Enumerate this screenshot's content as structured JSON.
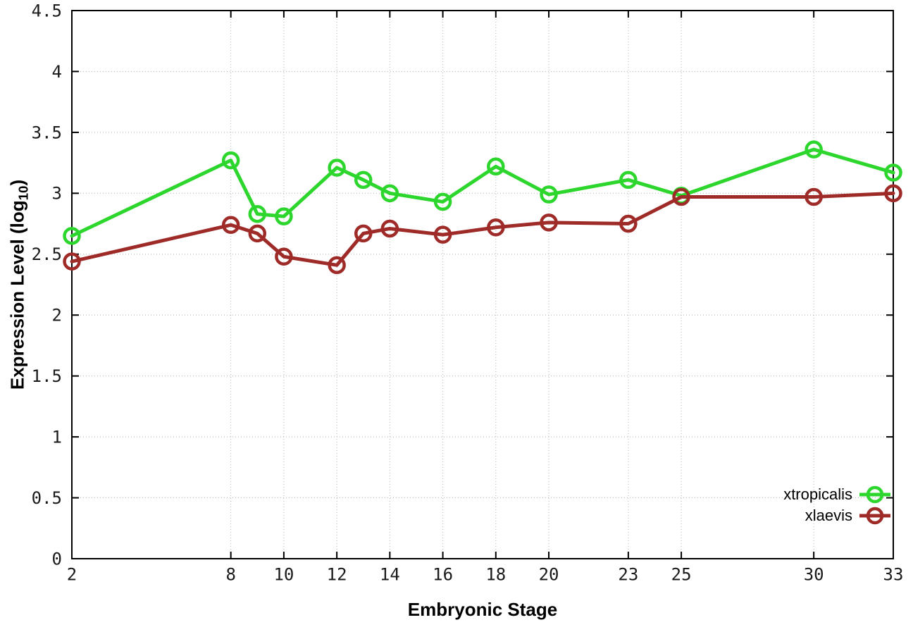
{
  "chart_data": {
    "type": "line",
    "title": "",
    "xlabel": "Embryonic Stage",
    "ylabel": {
      "pre": "Expression Level (log",
      "sub": "10",
      "post": ")"
    },
    "xlim": [
      2,
      33
    ],
    "ylim": [
      0,
      4.5
    ],
    "grid": true,
    "grid_color": "#b3b3b3",
    "axis_color": "#000000",
    "legend_position": "bottom-right",
    "x_ticks": [
      2,
      8,
      10,
      12,
      14,
      16,
      18,
      20,
      23,
      25,
      30,
      33
    ],
    "x_tick_labels": [
      "2",
      "8",
      "10",
      "12",
      "14",
      "16",
      "18",
      "20",
      "23",
      "25",
      "30",
      "33"
    ],
    "y_ticks": [
      0,
      0.5,
      1,
      1.5,
      2,
      2.5,
      3,
      3.5,
      4,
      4.5
    ],
    "y_tick_labels": [
      "0",
      "0.5",
      "1",
      "1.5",
      "2",
      "2.5",
      "3",
      "3.5",
      "4",
      "4.5"
    ],
    "series": [
      {
        "name": "xtropicalis",
        "color": "#2dd62d",
        "x": [
          2,
          8,
          9,
          10,
          12,
          13,
          14,
          16,
          18,
          20,
          23,
          25,
          30,
          33
        ],
        "y": [
          2.65,
          3.27,
          2.83,
          2.81,
          3.21,
          3.11,
          3.0,
          2.93,
          3.22,
          2.99,
          3.11,
          2.98,
          3.36,
          3.17
        ]
      },
      {
        "name": "xlaevis",
        "color": "#9e2b28",
        "x": [
          2,
          8,
          9,
          10,
          12,
          13,
          14,
          16,
          18,
          20,
          23,
          25,
          30,
          33
        ],
        "y": [
          2.44,
          2.74,
          2.67,
          2.48,
          2.41,
          2.67,
          2.71,
          2.66,
          2.72,
          2.76,
          2.75,
          2.97,
          2.97,
          3.0
        ]
      }
    ]
  }
}
